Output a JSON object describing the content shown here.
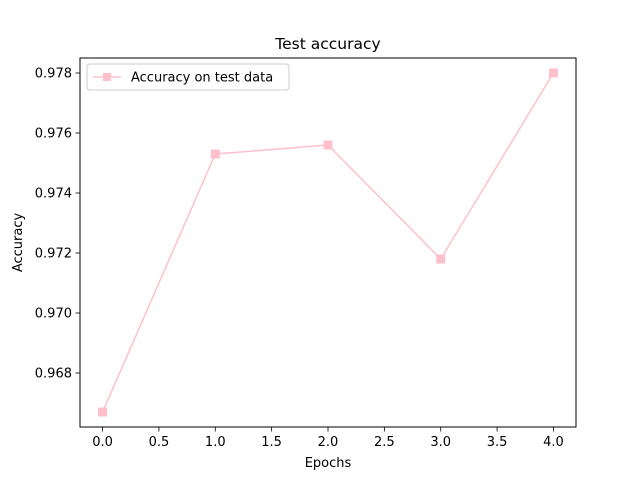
{
  "chart_data": {
    "type": "line",
    "title": "Test accuracy",
    "xlabel": "Epochs",
    "ylabel": "Accuracy",
    "x": [
      0,
      1,
      2,
      3,
      4
    ],
    "series": [
      {
        "name": "Accuracy on test data",
        "values": [
          0.9667,
          0.9753,
          0.9756,
          0.9718,
          0.978
        ],
        "color": "#ffc0cb",
        "marker": "square"
      }
    ],
    "xlim": [
      -0.2,
      4.2
    ],
    "ylim": [
      0.9662,
      0.9785
    ],
    "xticks": [
      0.0,
      0.5,
      1.0,
      1.5,
      2.0,
      2.5,
      3.0,
      3.5,
      4.0
    ],
    "xtick_labels": [
      "0.0",
      "0.5",
      "1.0",
      "1.5",
      "2.0",
      "2.5",
      "3.0",
      "3.5",
      "4.0"
    ],
    "yticks": [
      0.968,
      0.97,
      0.972,
      0.974,
      0.976,
      0.978
    ],
    "ytick_labels": [
      "0.968",
      "0.970",
      "0.972",
      "0.974",
      "0.976",
      "0.978"
    ],
    "grid": false,
    "legend_position": "top-left"
  }
}
